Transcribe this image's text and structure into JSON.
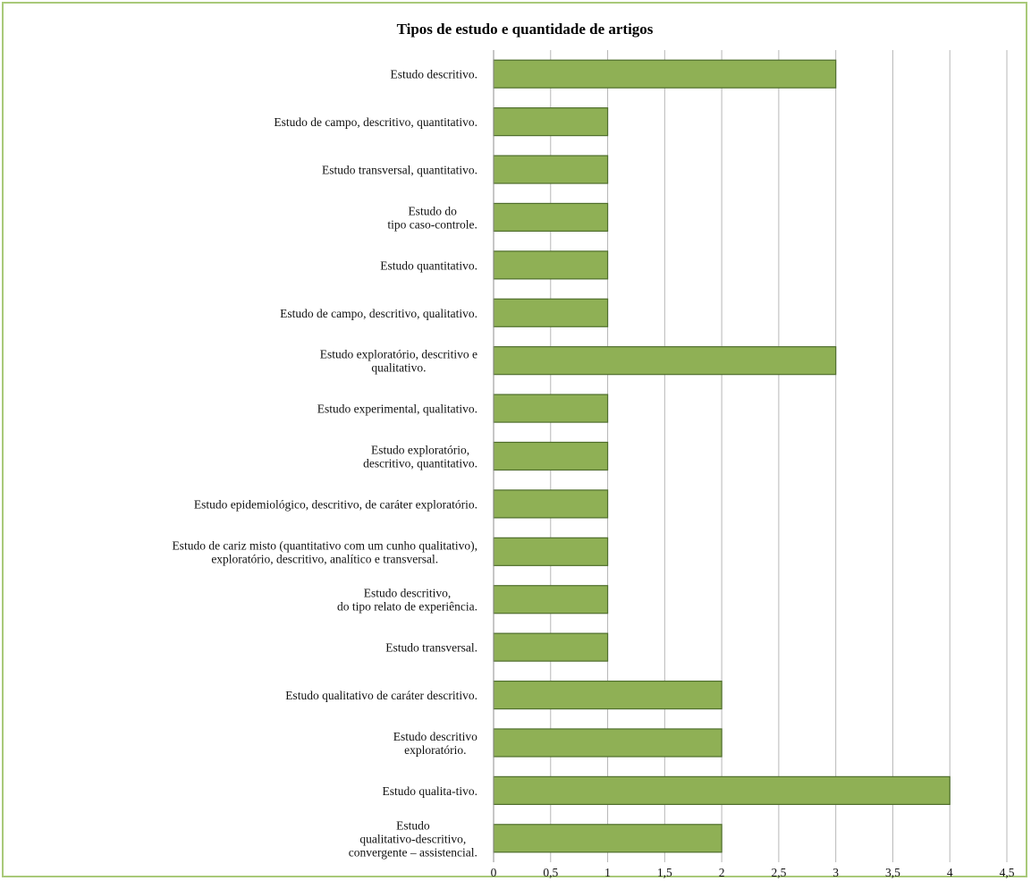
{
  "chart_data": {
    "type": "bar",
    "orientation": "horizontal",
    "title": "Tipos de estudo e quantidade de artigos",
    "xlabel": "",
    "ylabel": "",
    "xlim": [
      0,
      4.5
    ],
    "grid": true,
    "legend": "none",
    "bar_color": "#8fb055",
    "x_ticks": [
      "0",
      "0,5",
      "1",
      "1,5",
      "2",
      "2,5",
      "3",
      "3,5",
      "4",
      "4,5"
    ],
    "x_tick_values": [
      0,
      0.5,
      1,
      1.5,
      2,
      2.5,
      3,
      3.5,
      4,
      4.5
    ],
    "categories": [
      [
        "Estudo descritivo."
      ],
      [
        "Estudo de campo, descritivo, quantitativo."
      ],
      [
        "Estudo transversal, quantitativo."
      ],
      [
        "Estudo do",
        "tipo caso-controle."
      ],
      [
        "Estudo quantitativo."
      ],
      [
        "Estudo de campo, descritivo, qualitativo."
      ],
      [
        "Estudo exploratório, descritivo e",
        "qualitativo."
      ],
      [
        "Estudo experimental, qualitativo."
      ],
      [
        "Estudo exploratório,",
        "descritivo, quantitativo."
      ],
      [
        "Estudo epidemiológico, descritivo, de caráter exploratório."
      ],
      [
        "Estudo de cariz misto (quantitativo com um cunho qualitativo),",
        "exploratório, descritivo, analítico e transversal."
      ],
      [
        "Estudo descritivo,",
        "do tipo relato de experiência."
      ],
      [
        "Estudo transversal."
      ],
      [
        "Estudo qualitativo de caráter descritivo."
      ],
      [
        "Estudo descritivo",
        "exploratório."
      ],
      [
        "Estudo qualita-tivo."
      ],
      [
        "Estudo",
        "qualitativo-descritivo,",
        "convergente – assistencial."
      ]
    ],
    "values": [
      3,
      1,
      1,
      1,
      1,
      1,
      3,
      1,
      1,
      1,
      1,
      1,
      1,
      2,
      2,
      4,
      2
    ]
  }
}
